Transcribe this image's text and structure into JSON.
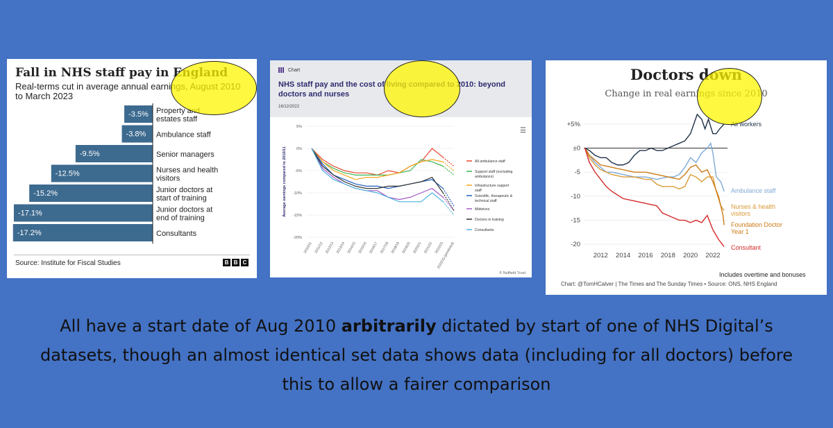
{
  "bbc": {
    "title": "Fall in NHS staff pay in England",
    "subtitle": "Real-terms cut in average annual earnings, August 2010 to March 2023",
    "source": "Source: Institute for Fiscal Studies",
    "logo": [
      "B",
      "B",
      "C"
    ]
  },
  "nuffield": {
    "tag": "Chart",
    "title": "NHS staff pay and the cost of living compared to 2010: beyond doctors and nurses",
    "date": "16/12/2022",
    "credit": "© Nuffield Trust"
  },
  "times": {
    "title": "Doctors down",
    "subtitle": "Change in real earnings since 2010",
    "note": "Includes overtime and bonuses",
    "credit": "Chart: @TomHCalver | The Times and The Sunday Times • Source: ONS, NHS England"
  },
  "caption": {
    "part1": "All have a start date of Aug 2010",
    "bold": "arbitrarily",
    "part2": "dictated by start of one of NHS Digital’s datasets, though an almost identical set data shows data (including for all doctors) before this to allow a fairer comparison"
  },
  "chart_data": [
    {
      "type": "bar",
      "orientation": "horizontal",
      "categories": [
        "Property and estates staff",
        "Ambulance staff",
        "Senior managers",
        "Nurses and health visitors",
        "Junior doctors at start of training",
        "Junior doctors at end of training",
        "Consultants"
      ],
      "values": [
        -3.5,
        -3.8,
        -9.5,
        -12.5,
        -15.2,
        -17.1,
        -17.2
      ],
      "labels": [
        "-3.5%",
        "-3.8%",
        "-9.5%",
        "-12.5%",
        "-15.2%",
        "-17.1%",
        "-17.2%"
      ],
      "color": "#3d6a8f"
    },
    {
      "type": "line",
      "x": [
        "2010/11",
        "2011/12",
        "2012/13",
        "2013/14",
        "2014/15",
        "2015/16",
        "2016/17",
        "2017/18",
        "2018/19",
        "2019/20",
        "2020/21",
        "2021/22",
        "2022/23",
        "2022/23 (predicted)"
      ],
      "y_ticks": [
        "5%",
        "0%",
        "-5%",
        "-10%",
        "-15%",
        "-20%"
      ],
      "ylim": [
        -20,
        5
      ],
      "ylabel": "Average earnings compared to 2010/11",
      "series": [
        {
          "name": "All ambulance staff",
          "color": "#e8472e",
          "values": [
            0,
            -2.5,
            -4,
            -5,
            -5.5,
            -5.5,
            -6,
            -5,
            -5.5,
            -4,
            -3,
            0,
            -2,
            -4
          ]
        },
        {
          "name": "Support staff (excluding ambulance)",
          "color": "#3eb34f",
          "values": [
            0,
            -3,
            -4.5,
            -5.5,
            -6,
            -6,
            -6,
            -6,
            -5.5,
            -5,
            -2.5,
            -3,
            -4,
            -6
          ]
        },
        {
          "name": "Infrastructure support staff",
          "color": "#f2a51e",
          "values": [
            0,
            -3,
            -5,
            -6,
            -7,
            -6.5,
            -6.5,
            -6,
            -5.5,
            -4,
            -3,
            -2.5,
            -3,
            -5
          ]
        },
        {
          "name": "Scientific, therapeutic & technical staff",
          "color": "#1f5fbf",
          "values": [
            0,
            -3.5,
            -6,
            -7,
            -8,
            -8.5,
            -8.5,
            -9,
            -8.5,
            -8,
            -7.5,
            -7,
            -9,
            -13
          ]
        },
        {
          "name": "Midwives",
          "color": "#a45bc6",
          "values": [
            0,
            -4.5,
            -6.5,
            -8,
            -9,
            -9.5,
            -9.5,
            -11,
            -11.5,
            -11,
            -10,
            -9,
            -11,
            -14
          ]
        },
        {
          "name": "Doctors in training",
          "color": "#333333",
          "values": [
            0,
            -4,
            -6,
            -7.5,
            -8.5,
            -9,
            -9,
            -8.5,
            -8.5,
            -8,
            -7.5,
            -6.5,
            -10,
            -14
          ]
        },
        {
          "name": "Consultants",
          "color": "#4ab3e0",
          "values": [
            0,
            -5,
            -7,
            -8,
            -9,
            -9.5,
            -10,
            -11,
            -12,
            -12,
            -12,
            -10,
            -12,
            -15
          ]
        }
      ]
    },
    {
      "type": "line",
      "x_ticks": [
        "2012",
        "2014",
        "2016",
        "2018",
        "2020",
        "2022"
      ],
      "y_ticks": [
        "+5%",
        "±0",
        "-5",
        "-10",
        "-15",
        "-20"
      ],
      "ylim": [
        -21,
        7
      ],
      "xlim": [
        2010.5,
        2023.3
      ],
      "series": [
        {
          "name": "All workers",
          "color": "#1d2f45",
          "points": [
            [
              2010.6,
              0
            ],
            [
              2011,
              -0.5
            ],
            [
              2011.5,
              -1.5
            ],
            [
              2012,
              -2
            ],
            [
              2012.5,
              -2
            ],
            [
              2013,
              -3
            ],
            [
              2013.5,
              -3.5
            ],
            [
              2014,
              -3.5
            ],
            [
              2014.5,
              -3
            ],
            [
              2015,
              -1.5
            ],
            [
              2015.5,
              -0.5
            ],
            [
              2016,
              -0.5
            ],
            [
              2016.5,
              0
            ],
            [
              2017,
              -0.5
            ],
            [
              2017.5,
              -0.5
            ],
            [
              2018,
              0
            ],
            [
              2018.5,
              0.5
            ],
            [
              2019,
              1
            ],
            [
              2019.5,
              1.5
            ],
            [
              2020,
              3
            ],
            [
              2020.3,
              5
            ],
            [
              2020.6,
              7
            ],
            [
              2021,
              6
            ],
            [
              2021.3,
              4
            ],
            [
              2021.6,
              6
            ],
            [
              2022,
              3
            ],
            [
              2022.3,
              3
            ],
            [
              2022.6,
              4
            ],
            [
              2023,
              5
            ]
          ]
        },
        {
          "name": "Ambulance staff",
          "color": "#7fa9d6",
          "points": [
            [
              2010.6,
              0
            ],
            [
              2011,
              -1.5
            ],
            [
              2011.5,
              -3
            ],
            [
              2012,
              -4
            ],
            [
              2012.5,
              -5
            ],
            [
              2013,
              -5
            ],
            [
              2014,
              -5.5
            ],
            [
              2015,
              -6
            ],
            [
              2016,
              -6
            ],
            [
              2017,
              -6.5
            ],
            [
              2018,
              -6
            ],
            [
              2018.5,
              -6
            ],
            [
              2019,
              -5.5
            ],
            [
              2019.5,
              -4
            ],
            [
              2020,
              -2
            ],
            [
              2020.5,
              -3
            ],
            [
              2021,
              -1
            ],
            [
              2021.5,
              0
            ],
            [
              2021.8,
              1
            ],
            [
              2022,
              -1
            ],
            [
              2022.3,
              -6
            ],
            [
              2022.7,
              -7
            ],
            [
              2023,
              -9
            ]
          ]
        },
        {
          "name": "Nurses & health visitors",
          "color": "#d99a36",
          "points": [
            [
              2010.6,
              0
            ],
            [
              2011,
              -2
            ],
            [
              2011.5,
              -3.5
            ],
            [
              2012,
              -4.5
            ],
            [
              2012.5,
              -5
            ],
            [
              2013,
              -5.5
            ],
            [
              2014,
              -6
            ],
            [
              2015,
              -6
            ],
            [
              2016,
              -6.5
            ],
            [
              2016.5,
              -6.5
            ],
            [
              2017,
              -7.5
            ],
            [
              2017.5,
              -8
            ],
            [
              2018,
              -8
            ],
            [
              2018.5,
              -8
            ],
            [
              2019,
              -8.5
            ],
            [
              2019.5,
              -8
            ],
            [
              2020,
              -5.5
            ],
            [
              2020.5,
              -6
            ],
            [
              2021,
              -7
            ],
            [
              2021.5,
              -6
            ],
            [
              2022,
              -6
            ],
            [
              2022.3,
              -9
            ],
            [
              2022.7,
              -12
            ],
            [
              2023,
              -13
            ]
          ]
        },
        {
          "name": "Foundation Doctor Year 1",
          "color": "#cc7a14",
          "points": [
            [
              2010.6,
              0
            ],
            [
              2011,
              -1.5
            ],
            [
              2011.5,
              -2.5
            ],
            [
              2012,
              -3.5
            ],
            [
              2013,
              -4
            ],
            [
              2014,
              -4.5
            ],
            [
              2015,
              -5
            ],
            [
              2016,
              -5
            ],
            [
              2017,
              -5.5
            ],
            [
              2018,
              -6
            ],
            [
              2019,
              -6.5
            ],
            [
              2019.5,
              -5.5
            ],
            [
              2020,
              -4
            ],
            [
              2020.5,
              -3.5
            ],
            [
              2021,
              -5
            ],
            [
              2021.5,
              -4.5
            ],
            [
              2022,
              -7
            ],
            [
              2022.5,
              -10
            ],
            [
              2022.9,
              -14
            ],
            [
              2023,
              -16
            ]
          ]
        },
        {
          "name": "Consultant",
          "color": "#d62a2a",
          "points": [
            [
              2010.6,
              0
            ],
            [
              2011,
              -3
            ],
            [
              2011.5,
              -5
            ],
            [
              2012,
              -6.5
            ],
            [
              2012.5,
              -8
            ],
            [
              2013,
              -9
            ],
            [
              2014,
              -10.5
            ],
            [
              2015,
              -11
            ],
            [
              2016,
              -11.5
            ],
            [
              2017,
              -12
            ],
            [
              2017.5,
              -13.5
            ],
            [
              2018,
              -14
            ],
            [
              2018.5,
              -14.5
            ],
            [
              2019,
              -15
            ],
            [
              2019.5,
              -15
            ],
            [
              2020,
              -15.5
            ],
            [
              2020.5,
              -15
            ],
            [
              2021,
              -15.5
            ],
            [
              2021.5,
              -14
            ],
            [
              2022,
              -17
            ],
            [
              2022.5,
              -19
            ],
            [
              2023,
              -20.5
            ]
          ]
        }
      ]
    }
  ]
}
